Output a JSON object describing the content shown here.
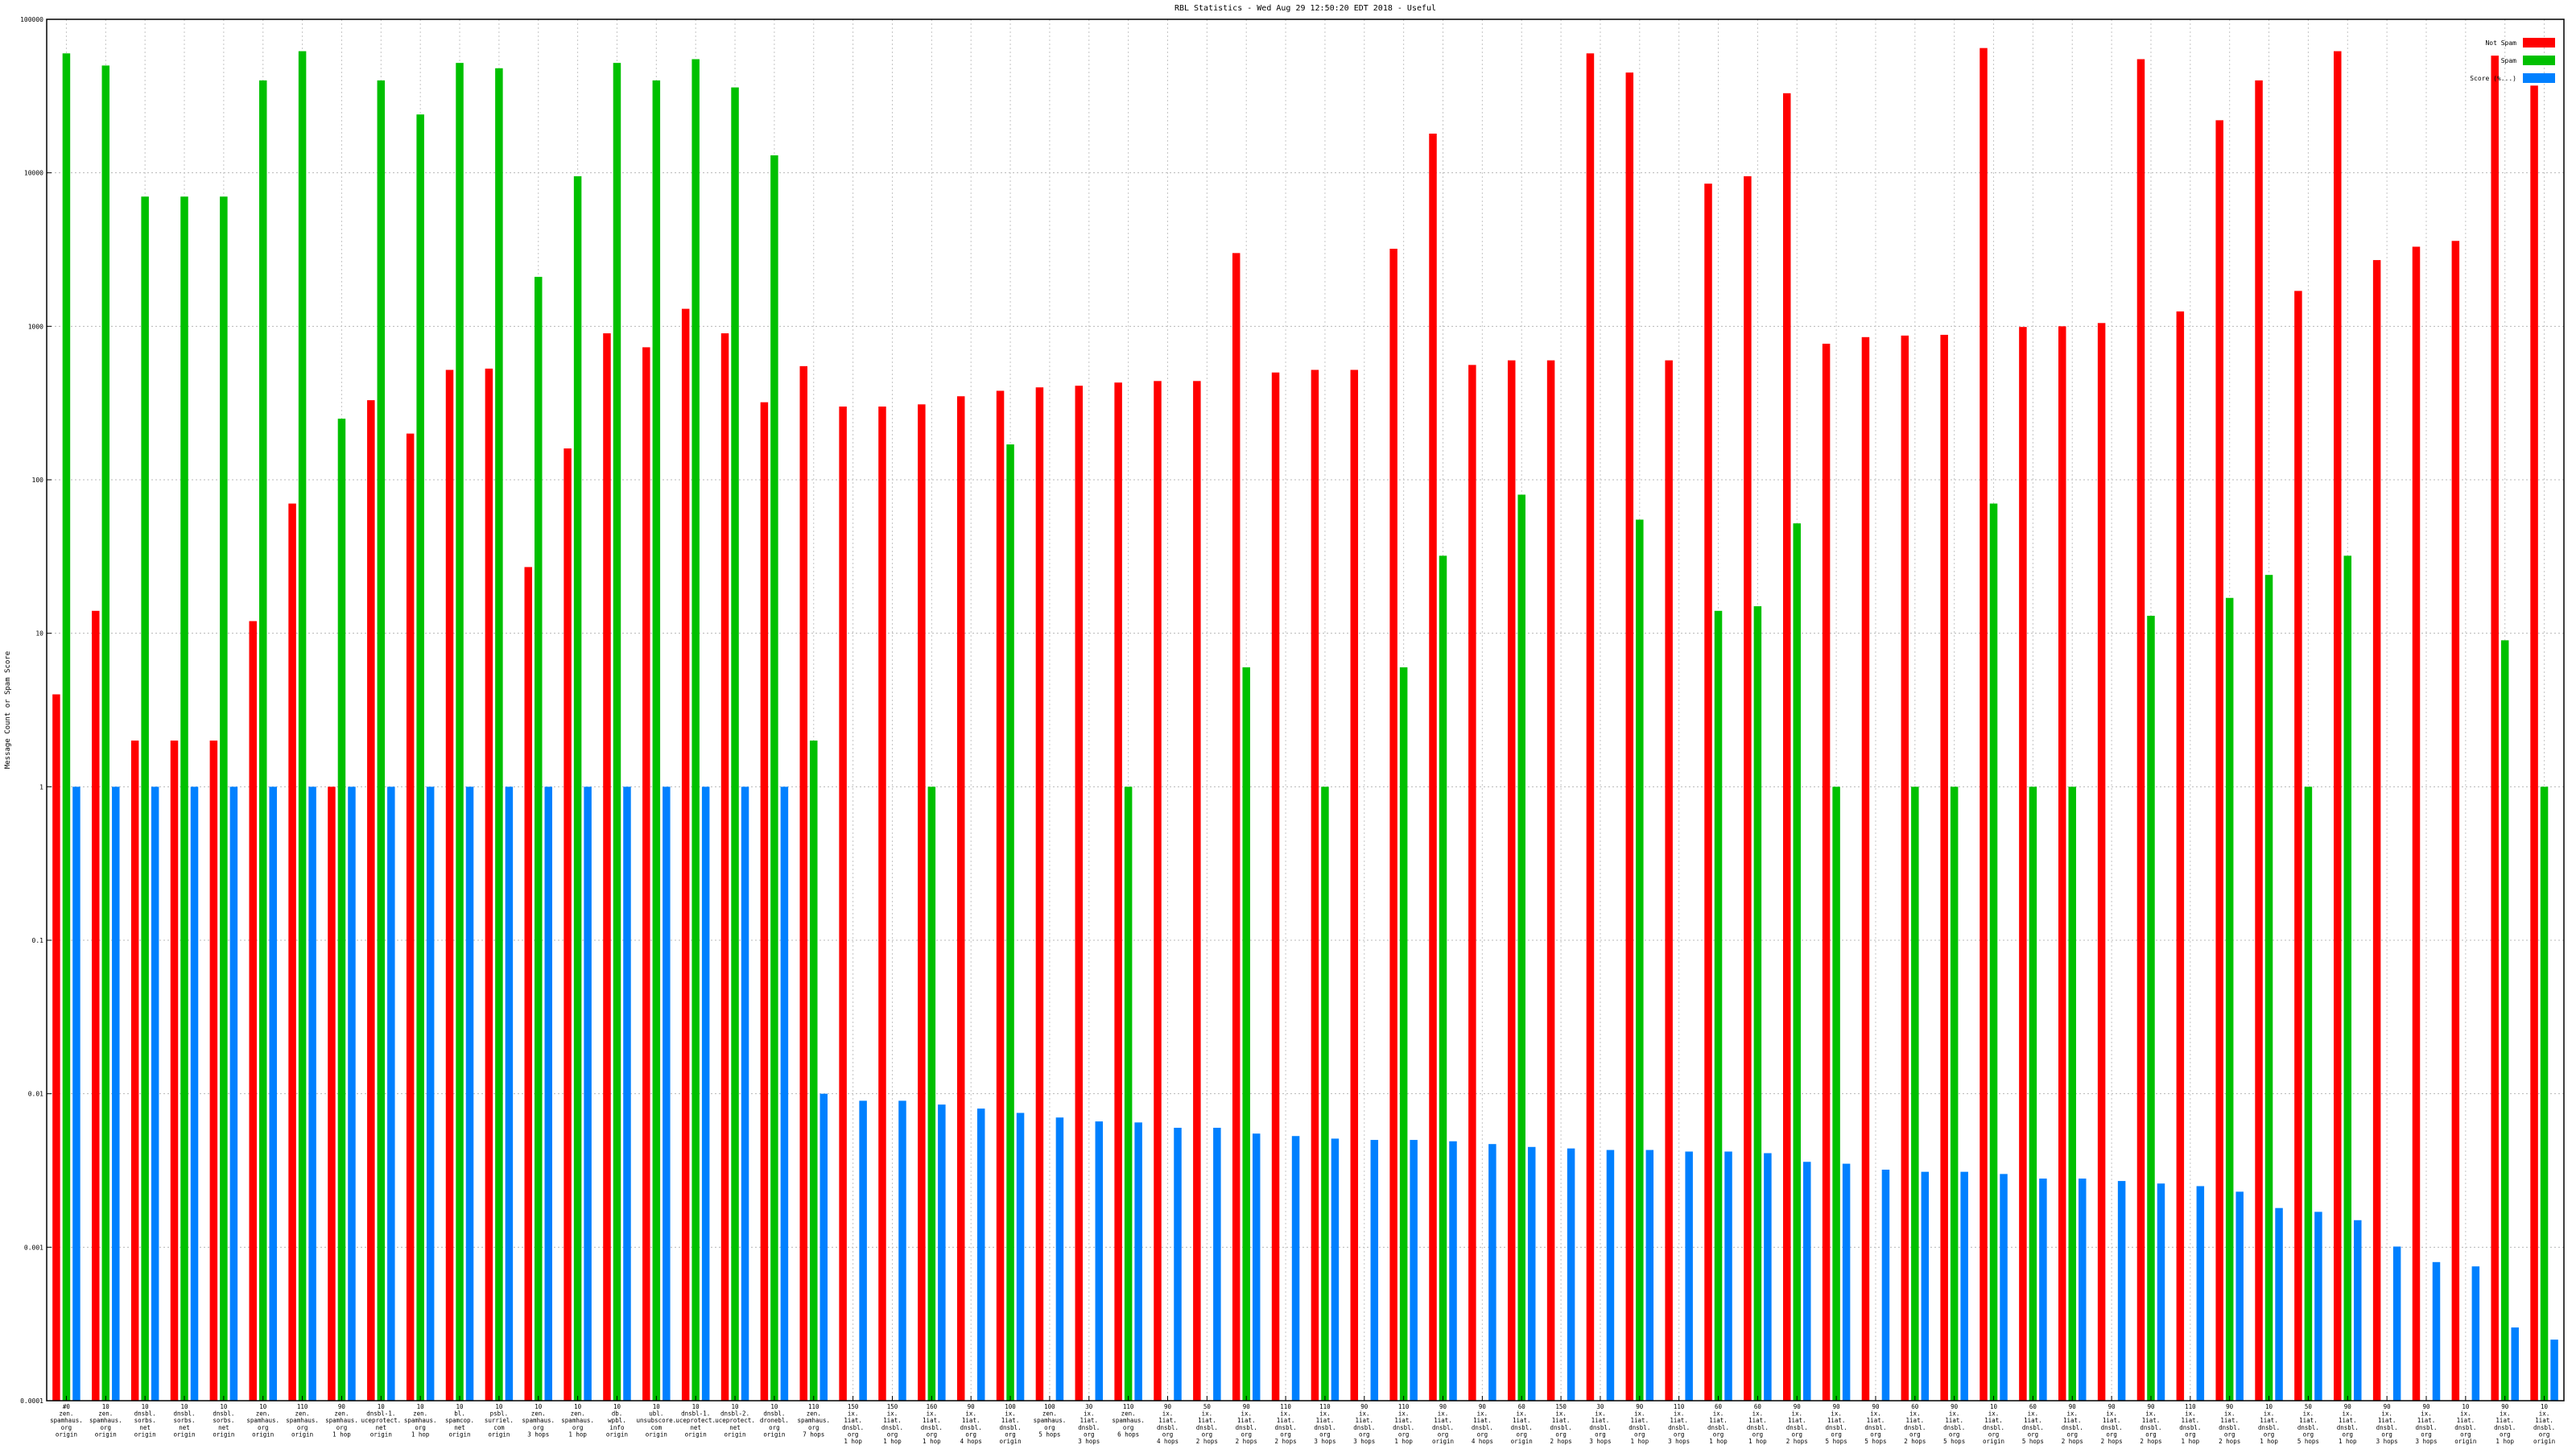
{
  "chart_data": {
    "type": "bar",
    "title": "RBL Statistics - Wed Aug 29 12:50:20 EDT 2018 - Useful",
    "xlabel": "",
    "ylabel": "Message Count or Spam Score",
    "yscale": "log",
    "ylim": [
      0.0001,
      100000
    ],
    "yticks": [
      {
        "value": 0.0001,
        "label": "0.0001"
      },
      {
        "value": 0.001,
        "label": "0.001"
      },
      {
        "value": 0.01,
        "label": "0.01"
      },
      {
        "value": 0.1,
        "label": "0.1"
      },
      {
        "value": 1,
        "label": "1"
      },
      {
        "value": 10,
        "label": "10"
      },
      {
        "value": 100,
        "label": "100"
      },
      {
        "value": 1000,
        "label": "1000"
      },
      {
        "value": 10000,
        "label": "10000"
      },
      {
        "value": 100000,
        "label": "100000"
      }
    ],
    "grid": true,
    "legend_position": "top-right",
    "categories": [
      [
        "#0",
        "zen.",
        "spamhaus.",
        "org",
        "origin"
      ],
      [
        "10",
        "zen.",
        "spamhaus.",
        "org",
        "origin"
      ],
      [
        "10",
        "dnsbl.",
        "sorbs.",
        "net",
        "origin"
      ],
      [
        "10",
        "dnsbl.",
        "sorbs.",
        "net",
        "origin"
      ],
      [
        "10",
        "dnsbl.",
        "sorbs.",
        "net",
        "origin"
      ],
      [
        "10",
        "zen.",
        "spamhaus.",
        "org",
        "origin"
      ],
      [
        "110",
        "zen.",
        "spamhaus.",
        "org",
        "origin"
      ],
      [
        "90",
        "zen.",
        "spamhaus.",
        "org",
        "1 hop"
      ],
      [
        "10",
        "dnsbl-1.",
        "uceprotect.",
        "net",
        "origin"
      ],
      [
        "10",
        "zen.",
        "spamhaus.",
        "org",
        "1 hop"
      ],
      [
        "10",
        "bl.",
        "spamcop.",
        "net",
        "origin"
      ],
      [
        "10",
        "psbl.",
        "surriel.",
        "com",
        "origin"
      ],
      [
        "10",
        "zen.",
        "spamhaus.",
        "org",
        "3 hops"
      ],
      [
        "10",
        "zen.",
        "spamhaus.",
        "org",
        "1 hop"
      ],
      [
        "10",
        "db.",
        "wpbl.",
        "info",
        "origin"
      ],
      [
        "10",
        "ubl.",
        "unsubscore.",
        "com",
        "origin"
      ],
      [
        "10",
        "dnsbl-1.",
        "uceprotect.",
        "net",
        "origin"
      ],
      [
        "10",
        "dnsbl-2.",
        "uceprotect.",
        "net",
        "origin"
      ],
      [
        "10",
        "dnsbl.",
        "dronebl.",
        "org",
        "origin"
      ],
      [
        "110",
        "zen.",
        "spamhaus.",
        "org",
        "7 hops"
      ],
      [
        "150",
        "ix.",
        "1iat.",
        "dnsbl.",
        "org",
        "1 hop"
      ],
      [
        "150",
        "ix.",
        "1iat.",
        "dnsbl.",
        "org",
        "1 hop"
      ],
      [
        "160",
        "ix.",
        "1iat.",
        "dnsbl.",
        "org",
        "1 hop"
      ],
      [
        "90",
        "ix.",
        "1iat.",
        "dnsbl.",
        "org",
        "4 hops"
      ],
      [
        "100",
        "ix.",
        "1iat.",
        "dnsbl.",
        "org",
        "origin"
      ],
      [
        "100",
        "zen.",
        "spamhaus.",
        "org",
        "5 hops"
      ],
      [
        "30",
        "ix.",
        "1iat.",
        "dnsbl.",
        "org",
        "3 hops"
      ],
      [
        "110",
        "zen.",
        "spamhaus.",
        "org",
        "6 hops"
      ],
      [
        "90",
        "ix.",
        "1iat.",
        "dnsbl.",
        "org",
        "4 hops"
      ],
      [
        "50",
        "ix.",
        "1iat.",
        "dnsbl.",
        "org",
        "2 hops"
      ],
      [
        "90",
        "ix.",
        "1iat.",
        "dnsbl.",
        "org",
        "2 hops"
      ],
      [
        "110",
        "ix.",
        "1iat.",
        "dnsbl.",
        "org",
        "2 hops"
      ],
      [
        "110",
        "ix.",
        "1iat.",
        "dnsbl.",
        "org",
        "3 hops"
      ],
      [
        "90",
        "ix.",
        "1iat.",
        "dnsbl.",
        "org",
        "3 hops"
      ],
      [
        "110",
        "ix.",
        "1iat.",
        "dnsbl.",
        "org",
        "1 hop"
      ],
      [
        "90",
        "ix.",
        "1iat.",
        "dnsbl.",
        "org",
        "origin"
      ],
      [
        "90",
        "ix.",
        "1iat.",
        "dnsbl.",
        "org",
        "4 hops"
      ],
      [
        "60",
        "ix.",
        "1iat.",
        "dnsbl.",
        "org",
        "origin"
      ],
      [
        "150",
        "ix.",
        "1iat.",
        "dnsbl.",
        "org",
        "2 hops"
      ],
      [
        "30",
        "ix.",
        "1iat.",
        "dnsbl.",
        "org",
        "3 hops"
      ],
      [
        "90",
        "ix.",
        "1iat.",
        "dnsbl.",
        "org",
        "1 hop"
      ],
      [
        "110",
        "ix.",
        "1iat.",
        "dnsbl.",
        "org",
        "3 hops"
      ],
      [
        "60",
        "ix.",
        "1iat.",
        "dnsbl.",
        "org",
        "1 hop"
      ],
      [
        "60",
        "ix.",
        "1iat.",
        "dnsbl.",
        "org",
        "1 hop"
      ],
      [
        "90",
        "ix.",
        "1iat.",
        "dnsbl.",
        "org",
        "2 hops"
      ],
      [
        "90",
        "ix.",
        "1iat.",
        "dnsbl.",
        "org",
        "5 hops"
      ],
      [
        "90",
        "ix.",
        "1iat.",
        "dnsbl.",
        "org",
        "5 hops"
      ],
      [
        "60",
        "ix.",
        "1iat.",
        "dnsbl.",
        "org",
        "2 hops"
      ],
      [
        "90",
        "ix.",
        "1iat.",
        "dnsbl.",
        "org",
        "5 hops"
      ],
      [
        "10",
        "ix.",
        "1iat.",
        "dnsbl.",
        "org",
        "origin"
      ],
      [
        "60",
        "ix.",
        "1iat.",
        "dnsbl.",
        "org",
        "5 hops"
      ],
      [
        "90",
        "ix.",
        "1iat.",
        "dnsbl.",
        "org",
        "2 hops"
      ],
      [
        "90",
        "ix.",
        "1iat.",
        "dnsbl.",
        "org",
        "2 hops"
      ],
      [
        "90",
        "ix.",
        "1iat.",
        "dnsbl.",
        "org",
        "2 hops"
      ],
      [
        "110",
        "ix.",
        "1iat.",
        "dnsbl.",
        "org",
        "1 hop"
      ],
      [
        "90",
        "ix.",
        "1iat.",
        "dnsbl.",
        "org",
        "2 hops"
      ],
      [
        "10",
        "ix.",
        "1iat.",
        "dnsbl.",
        "org",
        "1 hop"
      ],
      [
        "50",
        "ix.",
        "1iat.",
        "dnsbl.",
        "org",
        "5 hops"
      ],
      [
        "90",
        "ix.",
        "1iat.",
        "dnsbl.",
        "org",
        "1 hop"
      ],
      [
        "90",
        "ix.",
        "1iat.",
        "dnsbl.",
        "org",
        "3 hops"
      ],
      [
        "90",
        "ix.",
        "1iat.",
        "dnsbl.",
        "org",
        "3 hops"
      ],
      [
        "10",
        "ix.",
        "1iat.",
        "dnsbl.",
        "org",
        "origin"
      ],
      [
        "90",
        "ix.",
        "1iat.",
        "dnsbl.",
        "org",
        "1 hop"
      ],
      [
        "10",
        "ix.",
        "1iat.",
        "dnsbl.",
        "org",
        "origin"
      ]
    ],
    "series": [
      {
        "name": "Not Spam",
        "color": "#ff0000",
        "values": [
          4,
          14,
          2,
          2,
          2,
          12,
          70,
          1,
          330,
          200,
          520,
          530,
          27,
          160,
          900,
          730,
          1300,
          900,
          320,
          550,
          300,
          300,
          310,
          350,
          380,
          400,
          410,
          430,
          440,
          440,
          3000,
          500,
          520,
          520,
          3200,
          18000,
          560,
          600,
          600,
          60000,
          45000,
          600,
          8500,
          9500,
          33000,
          770,
          850,
          870,
          880,
          65000,
          990,
          1000,
          1050,
          55000,
          1250,
          22000,
          40000,
          1700,
          62000,
          2700,
          3300,
          3600,
          58000,
          37000
        ]
      },
      {
        "name": "Spam",
        "color": "#00c000",
        "values": [
          60000,
          50000,
          7000,
          7000,
          7000,
          40000,
          62000,
          250,
          40000,
          24000,
          52000,
          48000,
          2100,
          9500,
          52000,
          40000,
          55000,
          36000,
          13000,
          2,
          null,
          null,
          1,
          null,
          170,
          null,
          null,
          1,
          null,
          null,
          6,
          null,
          1,
          null,
          6,
          32,
          null,
          80,
          null,
          null,
          55,
          null,
          14,
          15,
          52,
          1,
          null,
          1,
          1,
          70,
          1,
          1,
          null,
          13,
          null,
          17,
          24,
          1,
          32,
          null,
          null,
          null,
          9,
          1
        ]
      },
      {
        "name": "Score (%...)",
        "color": "#0080ff",
        "values": [
          1,
          1,
          1,
          1,
          1,
          1,
          1,
          1,
          1,
          1,
          1,
          1,
          1,
          1,
          1,
          1,
          1,
          1,
          1,
          0.01,
          0.009,
          0.009,
          0.0085,
          0.008,
          0.0075,
          0.007,
          0.0066,
          0.0065,
          0.006,
          0.006,
          0.0055,
          0.0053,
          0.0051,
          0.005,
          0.005,
          0.0049,
          0.0047,
          0.0045,
          0.0044,
          0.0043,
          0.0043,
          0.0042,
          0.0042,
          0.0041,
          0.0036,
          0.0035,
          0.0032,
          0.0031,
          0.0031,
          0.003,
          0.0028,
          0.0028,
          0.0027,
          0.0026,
          0.0025,
          0.0023,
          0.0018,
          0.0017,
          0.0015,
          0.00101,
          0.0008,
          0.00075,
          0.0003,
          0.00025
        ]
      }
    ]
  }
}
